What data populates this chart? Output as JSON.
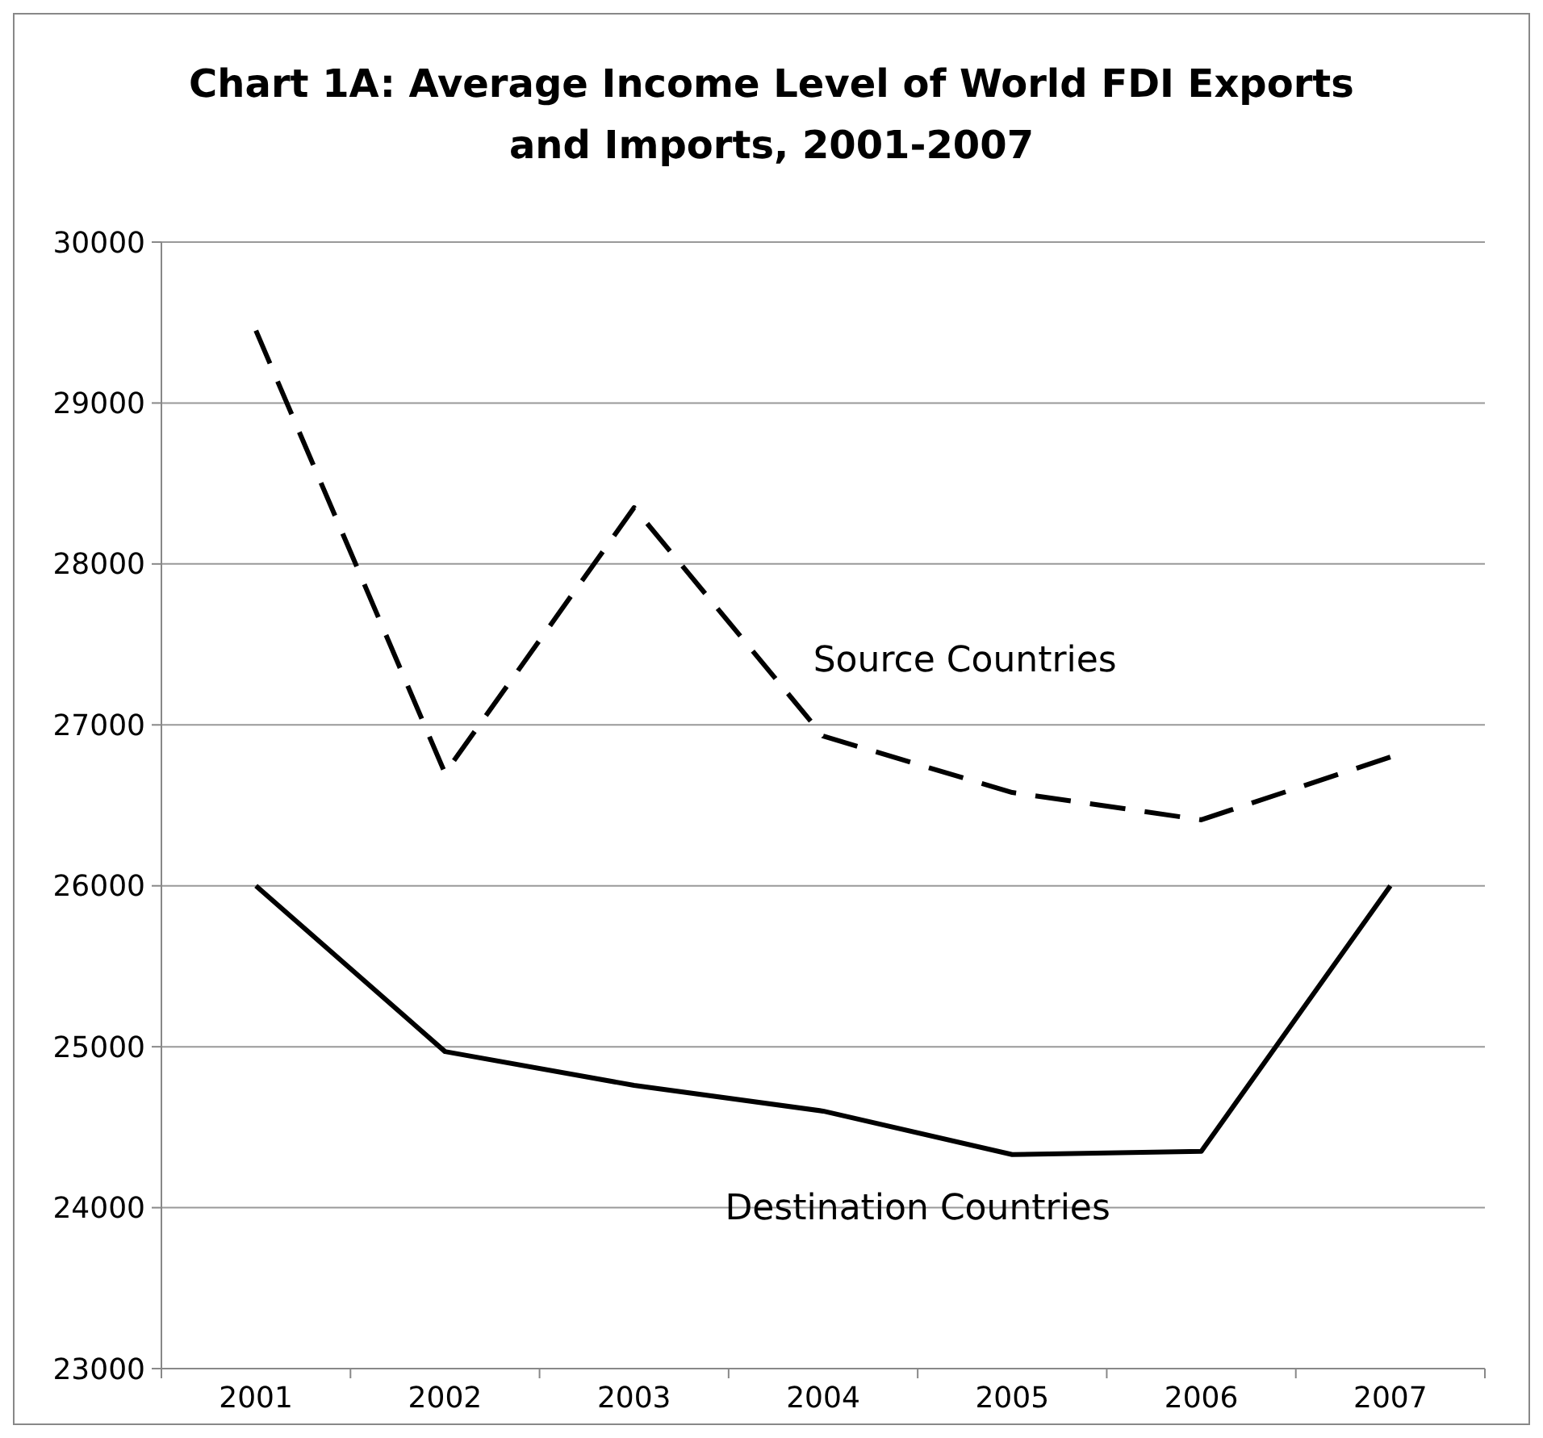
{
  "chart_data": {
    "type": "line",
    "title": "Chart 1A: Average Income Level of World FDI Exports and Imports, 2001-2007",
    "categories": [
      "2001",
      "2002",
      "2003",
      "2004",
      "2005",
      "2006",
      "2007"
    ],
    "series": [
      {
        "name": "Source Countries",
        "color": "#000000",
        "line_style": "dashed",
        "values": [
          29450,
          26700,
          28350,
          26930,
          26580,
          26410,
          26800
        ]
      },
      {
        "name": "Destination Countries",
        "color": "#000000",
        "line_style": "solid",
        "values": [
          26000,
          24970,
          24760,
          24600,
          24330,
          24350,
          26000
        ]
      }
    ],
    "ylim": [
      23000,
      30000
    ],
    "yticks": [
      23000,
      24000,
      25000,
      26000,
      27000,
      28000,
      29000,
      30000
    ],
    "grid": "y",
    "marker": "none"
  }
}
